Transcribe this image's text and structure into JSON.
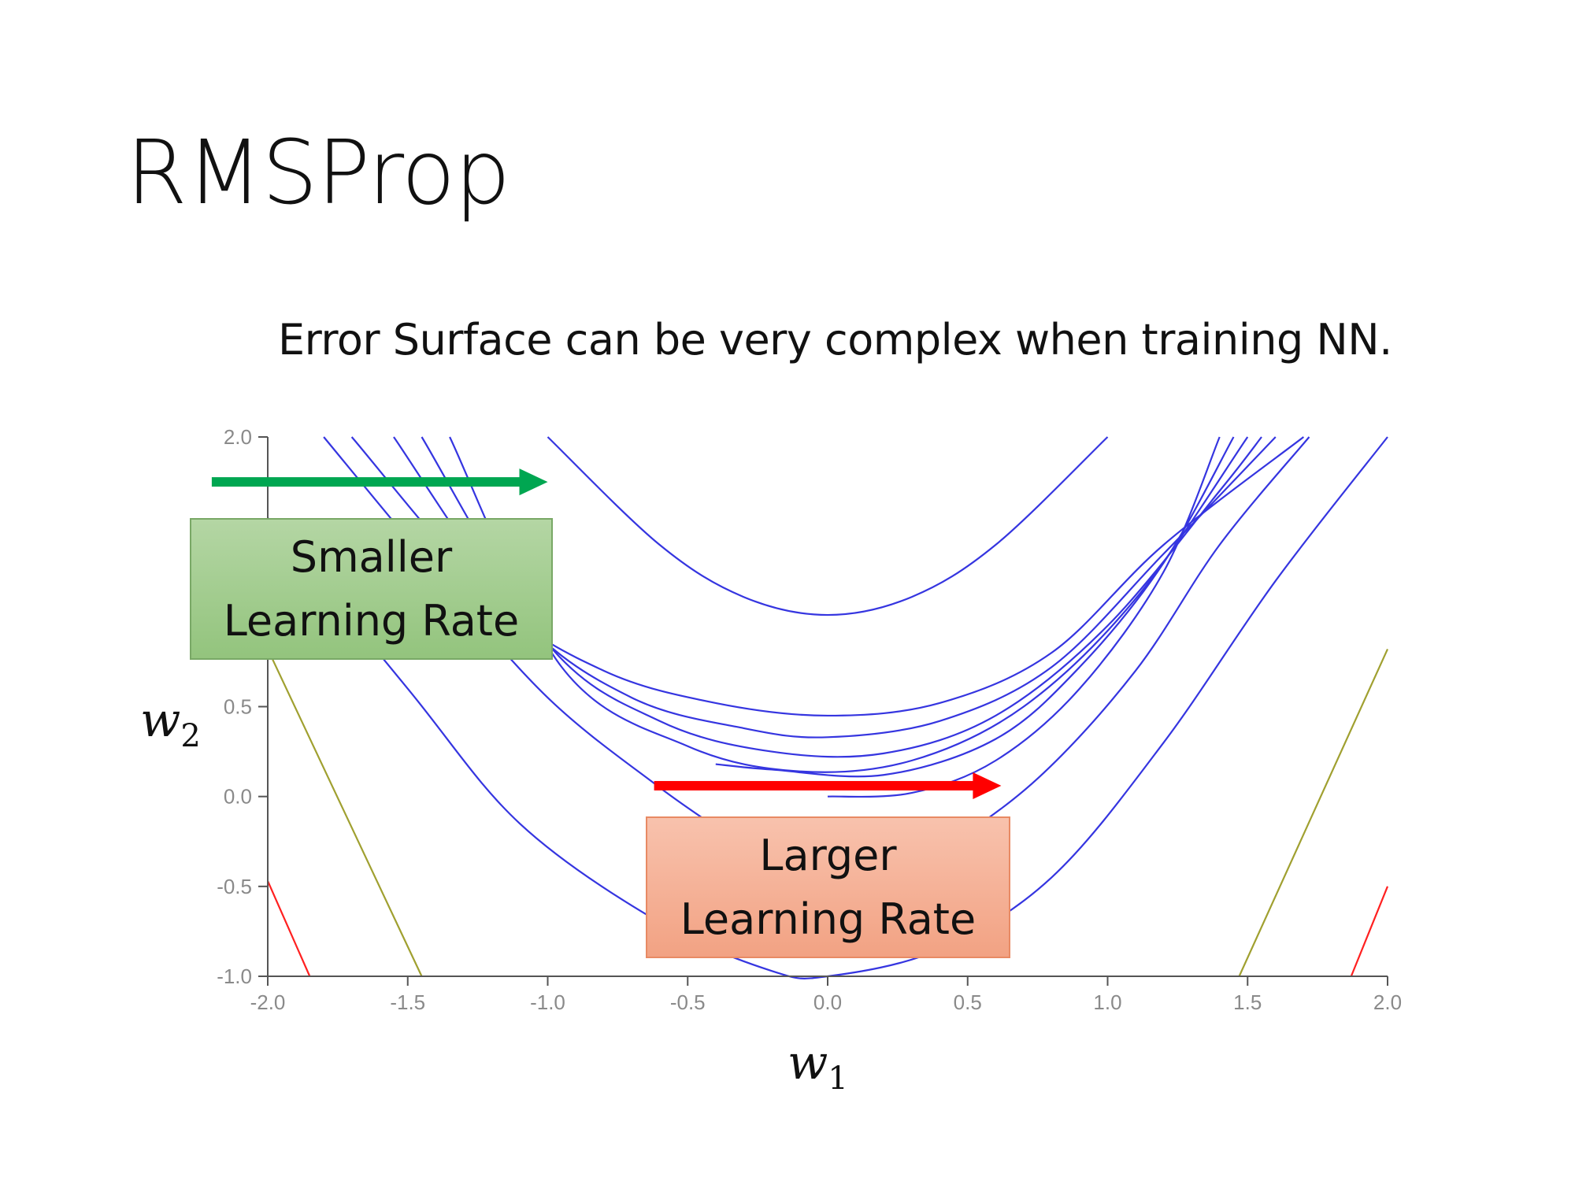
{
  "slide": {
    "title": "RMSProp",
    "subtitle": "Error Surface can be very complex when training NN."
  },
  "axis_labels": {
    "x": {
      "var": "w",
      "sub": "1"
    },
    "y": {
      "var": "w",
      "sub": "2"
    }
  },
  "callouts": {
    "smaller": {
      "line1": "Smaller",
      "line2": "Learning Rate",
      "color": "#93c47d"
    },
    "larger": {
      "line1": "Larger",
      "line2": "Learning Rate",
      "color": "#f4a582"
    }
  },
  "arrows": {
    "green": {
      "from": [
        -2.2,
        1.75
      ],
      "to": [
        -1.0,
        1.75
      ],
      "color": "#00a651"
    },
    "red": {
      "from": [
        -0.62,
        0.06
      ],
      "to": [
        0.62,
        0.06
      ],
      "color": "#ff0000"
    }
  },
  "colors": {
    "contour_blue": "#3535e0",
    "contour_olive": "#a0a030",
    "contour_red": "#ff2020",
    "axis": "#555555"
  },
  "chart_data": {
    "type": "contour",
    "xlim": [
      -2.0,
      2.0
    ],
    "ylim": [
      -1.0,
      2.0
    ],
    "xticks": [
      "-2.0",
      "-1.5",
      "-1.0",
      "-0.5",
      "0.0",
      "0.5",
      "1.0",
      "1.5",
      "2.0"
    ],
    "yticks": [
      "-1.0",
      "-0.5",
      "0.0",
      "0.5",
      "1.0",
      "1.5",
      "2.0"
    ],
    "xtick_values": [
      -2.0,
      -1.5,
      -1.0,
      -0.5,
      0.0,
      0.5,
      1.0,
      1.5,
      2.0
    ],
    "ytick_values": [
      -1.0,
      -0.5,
      0.0,
      0.5,
      1.0,
      1.5,
      2.0
    ],
    "contours": [
      {
        "color": "blue",
        "points": [
          [
            -1.0,
            2.0
          ],
          [
            -0.6,
            1.4
          ],
          [
            -0.3,
            1.11
          ],
          [
            0.0,
            1.01
          ],
          [
            0.3,
            1.11
          ],
          [
            0.6,
            1.4
          ],
          [
            1.0,
            2.0
          ]
        ]
      },
      {
        "color": "blue",
        "points": [
          [
            -1.7,
            2.0
          ],
          [
            -1.2,
            1.1
          ],
          [
            -0.8,
            0.7
          ],
          [
            -0.4,
            0.52
          ],
          [
            0.0,
            0.45
          ],
          [
            0.4,
            0.52
          ],
          [
            0.8,
            0.8
          ],
          [
            1.2,
            1.4
          ],
          [
            1.7,
            2.0
          ]
        ]
      },
      {
        "color": "blue",
        "points": [
          [
            -1.55,
            2.0
          ],
          [
            -1.1,
            1.0
          ],
          [
            -0.7,
            0.55
          ],
          [
            -0.3,
            0.38
          ],
          [
            0.0,
            0.33
          ],
          [
            0.4,
            0.42
          ],
          [
            0.8,
            0.72
          ],
          [
            1.2,
            1.35
          ],
          [
            1.6,
            2.0
          ]
        ]
      },
      {
        "color": "blue",
        "points": [
          [
            -1.45,
            2.0
          ],
          [
            -1.0,
            0.85
          ],
          [
            -0.6,
            0.42
          ],
          [
            -0.2,
            0.25
          ],
          [
            0.2,
            0.24
          ],
          [
            0.6,
            0.45
          ],
          [
            1.0,
            0.95
          ],
          [
            1.4,
            1.7
          ],
          [
            1.55,
            2.0
          ]
        ]
      },
      {
        "color": "blue",
        "points": [
          [
            -1.35,
            2.0
          ],
          [
            -0.95,
            0.72
          ],
          [
            -0.5,
            0.28
          ],
          [
            -0.1,
            0.14
          ],
          [
            0.3,
            0.2
          ],
          [
            0.7,
            0.5
          ],
          [
            1.1,
            1.1
          ],
          [
            1.5,
            2.0
          ]
        ]
      },
      {
        "color": "blue",
        "points": [
          [
            -0.4,
            0.18
          ],
          [
            -0.2,
            0.15
          ],
          [
            0.2,
            0.12
          ],
          [
            0.6,
            0.32
          ],
          [
            0.9,
            0.72
          ],
          [
            1.2,
            1.3
          ],
          [
            1.45,
            2.0
          ]
        ]
      },
      {
        "color": "blue",
        "points": [
          [
            0.0,
            0.0
          ],
          [
            0.3,
            0.02
          ],
          [
            0.6,
            0.2
          ],
          [
            0.9,
            0.6
          ],
          [
            1.2,
            1.25
          ],
          [
            1.4,
            2.0
          ]
        ]
      },
      {
        "color": "blue",
        "points": [
          [
            -1.8,
            2.0
          ],
          [
            -1.4,
            1.25
          ],
          [
            -1.0,
            0.55
          ],
          [
            -0.6,
            0.05
          ],
          [
            -0.3,
            -0.28
          ],
          [
            -0.1,
            -0.55
          ],
          [
            0.1,
            -0.55
          ],
          [
            0.4,
            -0.3
          ],
          [
            0.75,
            0.1
          ],
          [
            1.1,
            0.7
          ],
          [
            1.4,
            1.4
          ],
          [
            1.72,
            2.0
          ]
        ]
      },
      {
        "color": "blue",
        "points": [
          [
            -2.0,
            1.55
          ],
          [
            -1.5,
            0.6
          ],
          [
            -1.1,
            -0.15
          ],
          [
            -0.6,
            -0.7
          ],
          [
            -0.2,
            -0.97
          ],
          [
            0.0,
            -1.0
          ],
          [
            0.4,
            -0.85
          ],
          [
            0.8,
            -0.45
          ],
          [
            1.2,
            0.3
          ],
          [
            1.6,
            1.2
          ],
          [
            2.0,
            2.0
          ]
        ]
      },
      {
        "color": "olive",
        "points": [
          [
            -2.0,
            0.82
          ],
          [
            -1.45,
            -1.0
          ]
        ]
      },
      {
        "color": "olive",
        "points": [
          [
            1.47,
            -1.0
          ],
          [
            2.0,
            0.82
          ]
        ]
      },
      {
        "color": "red",
        "points": [
          [
            -2.0,
            -0.47
          ],
          [
            -1.85,
            -1.0
          ]
        ]
      },
      {
        "color": "red",
        "points": [
          [
            1.87,
            -1.0
          ],
          [
            2.0,
            -0.5
          ]
        ]
      }
    ]
  }
}
